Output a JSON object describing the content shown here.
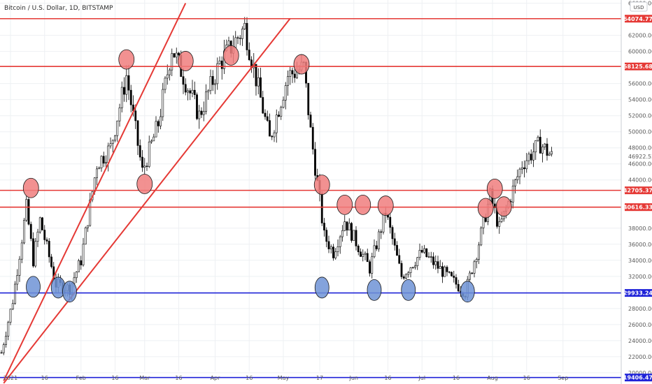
{
  "header": {
    "title": "Bitcoin / U.S. Dollar, 1D, BITSTAMP"
  },
  "currency_button": "USD",
  "chart_data": {
    "type": "candlestick",
    "title": "Bitcoin / U.S. Dollar, 1D, BITSTAMP",
    "ylim": [
      18600,
      66400
    ],
    "y_ticks": [
      {
        "v": 20000,
        "label": "20000.00"
      },
      {
        "v": 22000,
        "label": "22000.00"
      },
      {
        "v": 24000,
        "label": "24000.00"
      },
      {
        "v": 26000,
        "label": "26000.00"
      },
      {
        "v": 28000,
        "label": "28000.00"
      },
      {
        "v": 32000,
        "label": "32000.00"
      },
      {
        "v": 34000,
        "label": "34000.00"
      },
      {
        "v": 36000,
        "label": "36000.00"
      },
      {
        "v": 38000,
        "label": "38000.00"
      },
      {
        "v": 44000,
        "label": "44000.00"
      },
      {
        "v": 46000,
        "label": "46000.00"
      },
      {
        "v": 48000,
        "label": "48000.00"
      },
      {
        "v": 50000,
        "label": "50000.00"
      },
      {
        "v": 52000,
        "label": "52000.00"
      },
      {
        "v": 54000,
        "label": "54000.00"
      },
      {
        "v": 56000,
        "label": "56000.00"
      },
      {
        "v": 60000,
        "label": "60000.00"
      },
      {
        "v": 62000,
        "label": "62000.00"
      },
      {
        "v": 66000,
        "label": "66000.00"
      }
    ],
    "x_ticks": [
      {
        "date": "2021-01-01",
        "label": "2021"
      },
      {
        "date": "2021-01-16",
        "label": "16"
      },
      {
        "date": "2021-02-01",
        "label": "Feb"
      },
      {
        "date": "2021-02-16",
        "label": "16"
      },
      {
        "date": "2021-03-01",
        "label": "Mar"
      },
      {
        "date": "2021-03-16",
        "label": "16"
      },
      {
        "date": "2021-04-01",
        "label": "Apr"
      },
      {
        "date": "2021-04-16",
        "label": "16"
      },
      {
        "date": "2021-05-01",
        "label": "May"
      },
      {
        "date": "2021-05-17",
        "label": "17"
      },
      {
        "date": "2021-06-01",
        "label": "Jun"
      },
      {
        "date": "2021-06-16",
        "label": "16"
      },
      {
        "date": "2021-07-01",
        "label": "Jul"
      },
      {
        "date": "2021-07-16",
        "label": "16"
      },
      {
        "date": "2021-08-01",
        "label": "Aug"
      },
      {
        "date": "2021-08-16",
        "label": "16"
      },
      {
        "date": "2021-09-01",
        "label": "Sep"
      }
    ],
    "price_path": [
      {
        "date": "2020-12-28",
        "price": 22500
      },
      {
        "date": "2021-01-02",
        "price": 29000
      },
      {
        "date": "2021-01-08",
        "price": 40600
      },
      {
        "date": "2021-01-11",
        "price": 34000
      },
      {
        "date": "2021-01-14",
        "price": 39000
      },
      {
        "date": "2021-01-21",
        "price": 31000
      },
      {
        "date": "2021-01-27",
        "price": 30500
      },
      {
        "date": "2021-02-01",
        "price": 34000
      },
      {
        "date": "2021-02-08",
        "price": 46000
      },
      {
        "date": "2021-02-14",
        "price": 48000
      },
      {
        "date": "2021-02-21",
        "price": 57000
      },
      {
        "date": "2021-02-28",
        "price": 45000
      },
      {
        "date": "2021-03-07",
        "price": 51000
      },
      {
        "date": "2021-03-13",
        "price": 60500
      },
      {
        "date": "2021-03-25",
        "price": 52000
      },
      {
        "date": "2021-04-03",
        "price": 58500
      },
      {
        "date": "2021-04-14",
        "price": 63000
      },
      {
        "date": "2021-04-25",
        "price": 49000
      },
      {
        "date": "2021-05-03",
        "price": 57000
      },
      {
        "date": "2021-05-10",
        "price": 58000
      },
      {
        "date": "2021-05-13",
        "price": 50000
      },
      {
        "date": "2021-05-19",
        "price": 37000
      },
      {
        "date": "2021-05-23",
        "price": 35000
      },
      {
        "date": "2021-05-28",
        "price": 39000
      },
      {
        "date": "2021-06-08",
        "price": 33000
      },
      {
        "date": "2021-06-15",
        "price": 40000
      },
      {
        "date": "2021-06-22",
        "price": 32000
      },
      {
        "date": "2021-07-01",
        "price": 35000
      },
      {
        "date": "2021-07-20",
        "price": 30000
      },
      {
        "date": "2021-07-25",
        "price": 35000
      },
      {
        "date": "2021-07-31",
        "price": 42000
      },
      {
        "date": "2021-08-04",
        "price": 38000
      },
      {
        "date": "2021-08-14",
        "price": 46000
      },
      {
        "date": "2021-08-22",
        "price": 48500
      },
      {
        "date": "2021-08-27",
        "price": 46922.52
      }
    ],
    "last_price": {
      "value": 46922.52,
      "label": "46922.52"
    },
    "horizontal_levels": [
      {
        "price": 64074.77,
        "label": "64074.77",
        "color": "#e53935"
      },
      {
        "price": 58125.68,
        "label": "58125.68",
        "color": "#e53935"
      },
      {
        "price": 42705.37,
        "label": "42705.37",
        "color": "#e53935"
      },
      {
        "price": 40616.33,
        "label": "40616.33",
        "color": "#e53935"
      },
      {
        "price": 29933.24,
        "label": "29933.24",
        "color": "#1e22d8"
      },
      {
        "price": 19406.47,
        "label": "19406.47",
        "color": "#1e22d8"
      }
    ],
    "trend_lines": [
      {
        "from": {
          "date": "2020-12-29",
          "price": 19000
        },
        "to": {
          "date": "2021-03-19",
          "price": 66000
        },
        "color": "#e53935"
      },
      {
        "from": {
          "date": "2020-12-29",
          "price": 18700
        },
        "to": {
          "date": "2021-05-04",
          "price": 64100
        },
        "color": "#e53935"
      }
    ],
    "circles": [
      {
        "date": "2021-01-10",
        "price": 43000,
        "color": "red"
      },
      {
        "date": "2021-02-21",
        "price": 59000,
        "color": "red"
      },
      {
        "date": "2021-03-01",
        "price": 43500,
        "color": "red"
      },
      {
        "date": "2021-03-19",
        "price": 58800,
        "color": "red"
      },
      {
        "date": "2021-04-08",
        "price": 59500,
        "color": "red"
      },
      {
        "date": "2021-05-09",
        "price": 58400,
        "color": "red"
      },
      {
        "date": "2021-05-18",
        "price": 43400,
        "color": "red"
      },
      {
        "date": "2021-05-28",
        "price": 40900,
        "color": "red"
      },
      {
        "date": "2021-06-05",
        "price": 40900,
        "color": "red"
      },
      {
        "date": "2021-06-15",
        "price": 40800,
        "color": "red"
      },
      {
        "date": "2021-07-29",
        "price": 40500,
        "color": "red"
      },
      {
        "date": "2021-08-02",
        "price": 42900,
        "color": "red"
      },
      {
        "date": "2021-08-06",
        "price": 40700,
        "color": "red"
      },
      {
        "date": "2021-01-11",
        "price": 30700,
        "color": "blue"
      },
      {
        "date": "2021-01-22",
        "price": 30600,
        "color": "blue"
      },
      {
        "date": "2021-01-27",
        "price": 30100,
        "color": "blue"
      },
      {
        "date": "2021-05-18",
        "price": 30600,
        "color": "blue"
      },
      {
        "date": "2021-06-10",
        "price": 30300,
        "color": "blue"
      },
      {
        "date": "2021-06-25",
        "price": 30300,
        "color": "blue"
      },
      {
        "date": "2021-07-21",
        "price": 30100,
        "color": "blue"
      }
    ],
    "colors": {
      "up": "#ffffff",
      "down": "#000000",
      "red_circle_fill": "#f07e7e",
      "blue_circle_fill": "#6f93d6",
      "red_line": "#e53935",
      "blue_line": "#1e22d8",
      "price_tag_bg": "#131722"
    }
  }
}
